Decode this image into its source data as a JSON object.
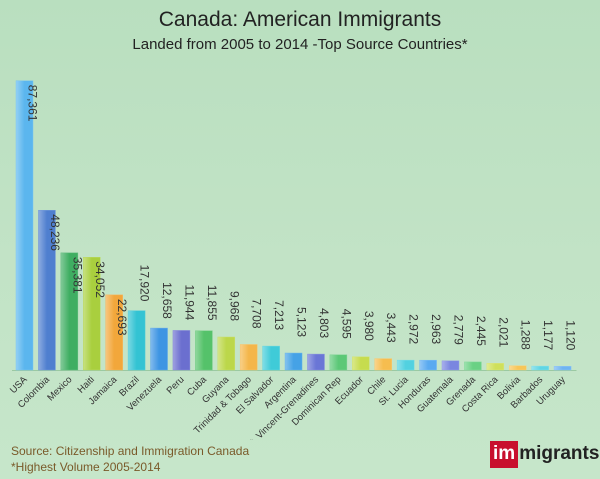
{
  "chart_data": {
    "type": "bar",
    "title": "Canada: American Immigrants",
    "subtitle": "Landed from 2005 to 2014 -Top Source Countries*",
    "xlabel": "",
    "ylabel": "",
    "ylim": [
      0,
      90000
    ],
    "grid": false,
    "categories": [
      "USA",
      "Colombia",
      "Mexico",
      "Haiti",
      "Jamaica",
      "Brazil",
      "Venezuela",
      "Peru",
      "Cuba",
      "Guyana",
      "Trinidad & Tobago",
      "El Salvador",
      "Argentina",
      "St. Vincent-Grenadines",
      "Dominican Rep",
      "Ecuador",
      "Chile",
      "St. Lucia",
      "Honduras",
      "Guatemala",
      "Grenada",
      "Costa Rica",
      "Bolivia",
      "Barbados",
      "Uruguay"
    ],
    "values": [
      87361,
      48236,
      35381,
      34052,
      22693,
      17920,
      12658,
      11944,
      11855,
      9968,
      7708,
      7213,
      5123,
      4803,
      4595,
      3980,
      3443,
      2972,
      2963,
      2779,
      2445,
      2021,
      1288,
      1177,
      1120
    ],
    "labels": [
      "87,361",
      "48,236",
      "35,381",
      "34,052",
      "22,693",
      "17,920",
      "12,658",
      "11,944",
      "11,855",
      "9,968",
      "7,708",
      "7,213",
      "5,123",
      "4,803",
      "4,595",
      "3,980",
      "3,443",
      "2,972",
      "2,963",
      "2,779",
      "2,445",
      "2,021",
      "1,288",
      "1,177",
      "1,120"
    ],
    "colors": [
      "#5bb6ee",
      "#4f7fcf",
      "#3fae62",
      "#a9cf3e",
      "#f2a73b",
      "#33c3d3",
      "#3e95e3",
      "#6b6fcf",
      "#55c26a",
      "#bcd74a",
      "#f4b64a",
      "#3fcbd8",
      "#45a2e6",
      "#6a76d6",
      "#5cc877",
      "#c6dc4e",
      "#f6bd4f",
      "#52d1e0",
      "#5aaaf0",
      "#7a86e0",
      "#6ad184",
      "#cfe05a",
      "#f7c658",
      "#60d6e4",
      "#6fb4f2"
    ]
  },
  "footer": {
    "source": "Source: Citizenship and Immigration Canada",
    "note": "*Highest Volume 2005-2014"
  },
  "logo": {
    "prefix": "im",
    "rest": "migrants",
    "brand_color": "#c8102e"
  }
}
